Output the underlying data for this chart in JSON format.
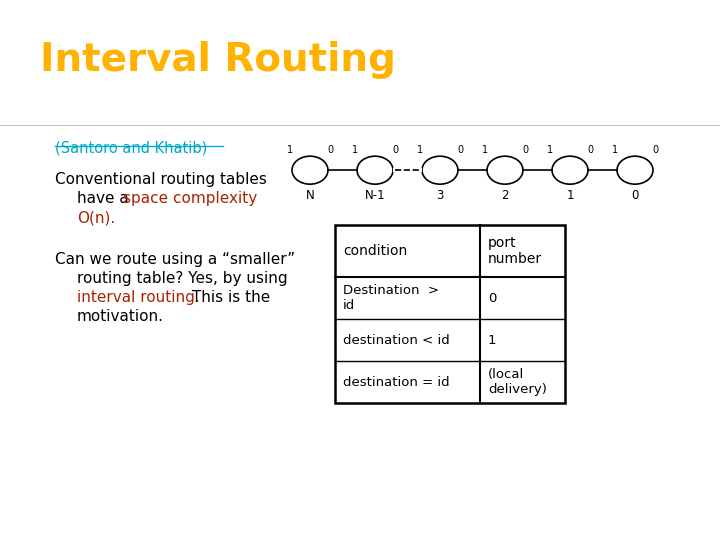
{
  "title": "Interval Routing",
  "title_color": "#FFB300",
  "title_bg": "#000000",
  "subtitle": "(Santoro and Khatib)",
  "subtitle_color": "#00AACC",
  "bg_color": "#FFFFFF",
  "body_text_color": "#000000",
  "red_color": "#AA2200",
  "line1": "Conventional routing tables",
  "line2_normal": "have a ",
  "line2_red": "space complexity",
  "line3_red": "O(n).",
  "line4": "Can we route using a “smaller”",
  "line5": "routing table? Yes, by using",
  "line6_red": "interval routing.",
  "line6_normal2": " This is the",
  "line7": "motivation.",
  "nodes": [
    "N",
    "N-1",
    "3",
    "2",
    "1",
    "0"
  ],
  "table_headers": [
    "condition",
    "port\nnumber"
  ],
  "table_rows": [
    [
      "Destination  >\nid",
      "0"
    ],
    [
      "destination < id",
      "1"
    ],
    [
      "destination = id",
      "(local\ndelivery)"
    ]
  ]
}
